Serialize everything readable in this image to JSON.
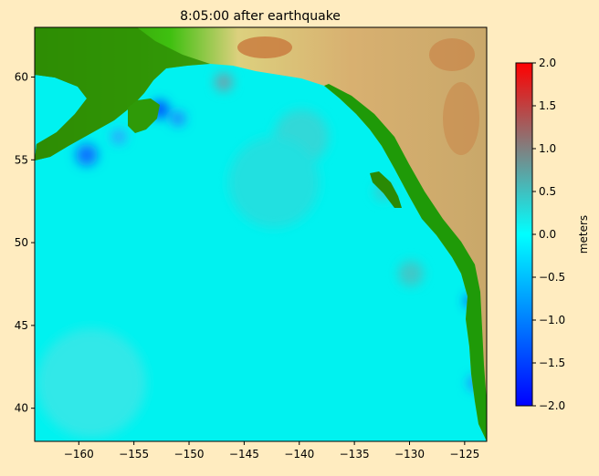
{
  "chart_data": {
    "type": "heatmap",
    "title": "8:05:00 after earthquake",
    "xlim": [
      -164,
      -123
    ],
    "ylim": [
      38,
      63
    ],
    "xticks": [
      -160,
      -155,
      -150,
      -145,
      -140,
      -135,
      -130,
      -125
    ],
    "yticks": [
      40,
      45,
      50,
      55,
      60
    ],
    "xtick_labels": [
      "−160",
      "−155",
      "−150",
      "−145",
      "−140",
      "−135",
      "−130",
      "−125"
    ],
    "ytick_labels": [
      "40",
      "45",
      "50",
      "55",
      "60"
    ],
    "colorbar": {
      "label": "meters",
      "range": [
        -2.0,
        2.0
      ],
      "ticks": [
        2.0,
        1.5,
        1.0,
        0.5,
        0.0,
        -0.5,
        -1.0,
        -1.5,
        -2.0
      ],
      "tick_labels": [
        "2.0",
        "1.5",
        "1.0",
        "0.5",
        "0.0",
        "−0.5",
        "−1.0",
        "−1.5",
        "−2.0"
      ],
      "colors": [
        "#0000ff",
        "#0080ff",
        "#00ffff",
        "#808080",
        "#ff0000"
      ]
    },
    "land_colors": [
      "#267300",
      "#33ff00",
      "#e6d98a",
      "#c8783c"
    ],
    "grid": false
  }
}
